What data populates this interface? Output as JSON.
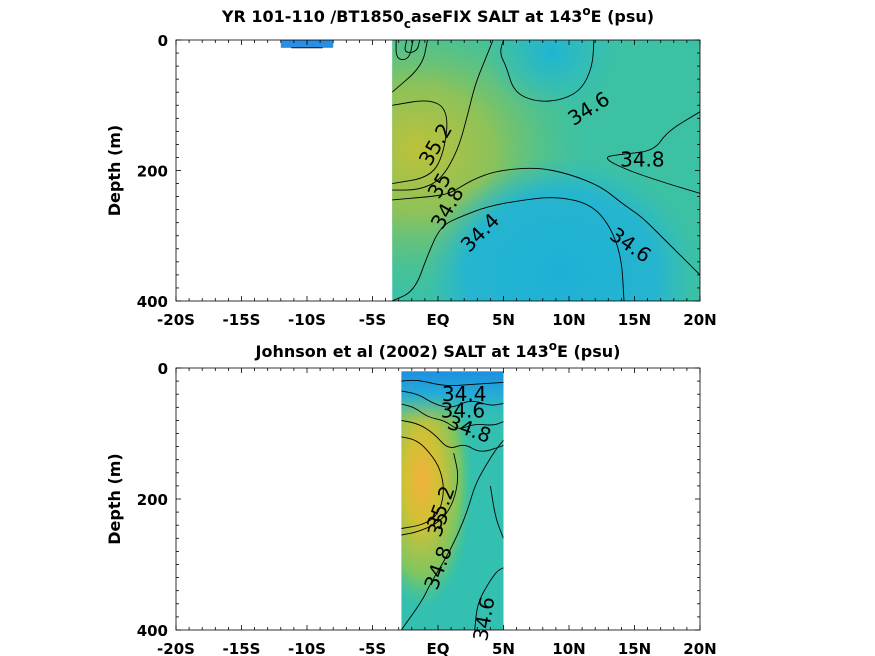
{
  "chart_data": [
    {
      "type": "heatmap",
      "title_main": "YR 101-110 /BT1850",
      "title_sub": "c",
      "title_rest": "aseFIX SALT at 143",
      "title_sup": "o",
      "title_end": "E (psu)",
      "ylabel": "Depth (m)",
      "xlim": [
        -20,
        20
      ],
      "ylim": [
        0,
        400
      ],
      "y_reversed": true,
      "x_ticks": [
        -20,
        -15,
        -10,
        -5,
        0,
        5,
        10,
        15,
        20
      ],
      "x_tick_labels": [
        "-20S",
        "-15S",
        "-10S",
        "-5S",
        "EQ",
        "5N",
        "10N",
        "15N",
        "20N"
      ],
      "y_ticks": [
        0,
        200,
        400
      ],
      "y_tick_labels": [
        "0",
        "200",
        "400"
      ],
      "data_extent": {
        "x": [
          -3.5,
          20
        ],
        "y": [
          0,
          400
        ]
      },
      "patch_extent": {
        "x": [
          -12,
          -8
        ],
        "y": [
          0,
          12
        ]
      },
      "contour_labels": [
        {
          "text": "34.6",
          "x": 11.5,
          "y": 105,
          "angle": -32
        },
        {
          "text": "34.8",
          "x": 15.6,
          "y": 183,
          "angle": 0
        },
        {
          "text": "35.2",
          "x": -0.2,
          "y": 160,
          "angle": -60
        },
        {
          "text": "35",
          "x": 0.1,
          "y": 223,
          "angle": -60
        },
        {
          "text": "34.8",
          "x": 0.7,
          "y": 257,
          "angle": -60
        },
        {
          "text": "34.4",
          "x": 3.2,
          "y": 295,
          "angle": -45
        },
        {
          "text": "34.6",
          "x": 14.7,
          "y": 314,
          "angle": 35
        }
      ]
    },
    {
      "type": "heatmap",
      "title_main": "Johnson et al (2002) SALT at 143",
      "title_sup": "o",
      "title_end": "E (psu)",
      "ylabel": "Depth (m)",
      "xlim": [
        -20,
        20
      ],
      "ylim": [
        0,
        400
      ],
      "y_reversed": true,
      "x_ticks": [
        -20,
        -15,
        -10,
        -5,
        0,
        5,
        10,
        15,
        20
      ],
      "x_tick_labels": [
        "-20S",
        "-15S",
        "-10S",
        "-5S",
        "EQ",
        "5N",
        "10N",
        "15N",
        "20N"
      ],
      "y_ticks": [
        0,
        200,
        400
      ],
      "y_tick_labels": [
        "0",
        "200",
        "400"
      ],
      "data_extent": {
        "x": [
          -2.8,
          5
        ],
        "y": [
          5,
          400
        ]
      },
      "contour_labels": [
        {
          "text": "34.4",
          "x": 2.0,
          "y": 40,
          "angle": 0
        },
        {
          "text": "34.6",
          "x": 1.9,
          "y": 65,
          "angle": 0
        },
        {
          "text": "34.8",
          "x": 2.4,
          "y": 93,
          "angle": 20
        },
        {
          "text": "35.2",
          "x": 0.2,
          "y": 213,
          "angle": -70
        },
        {
          "text": "35",
          "x": 0.0,
          "y": 238,
          "angle": -70
        },
        {
          "text": "34.8",
          "x": 0.0,
          "y": 305,
          "angle": -70
        },
        {
          "text": "34.6",
          "x": 3.5,
          "y": 383,
          "angle": -80
        }
      ]
    }
  ]
}
